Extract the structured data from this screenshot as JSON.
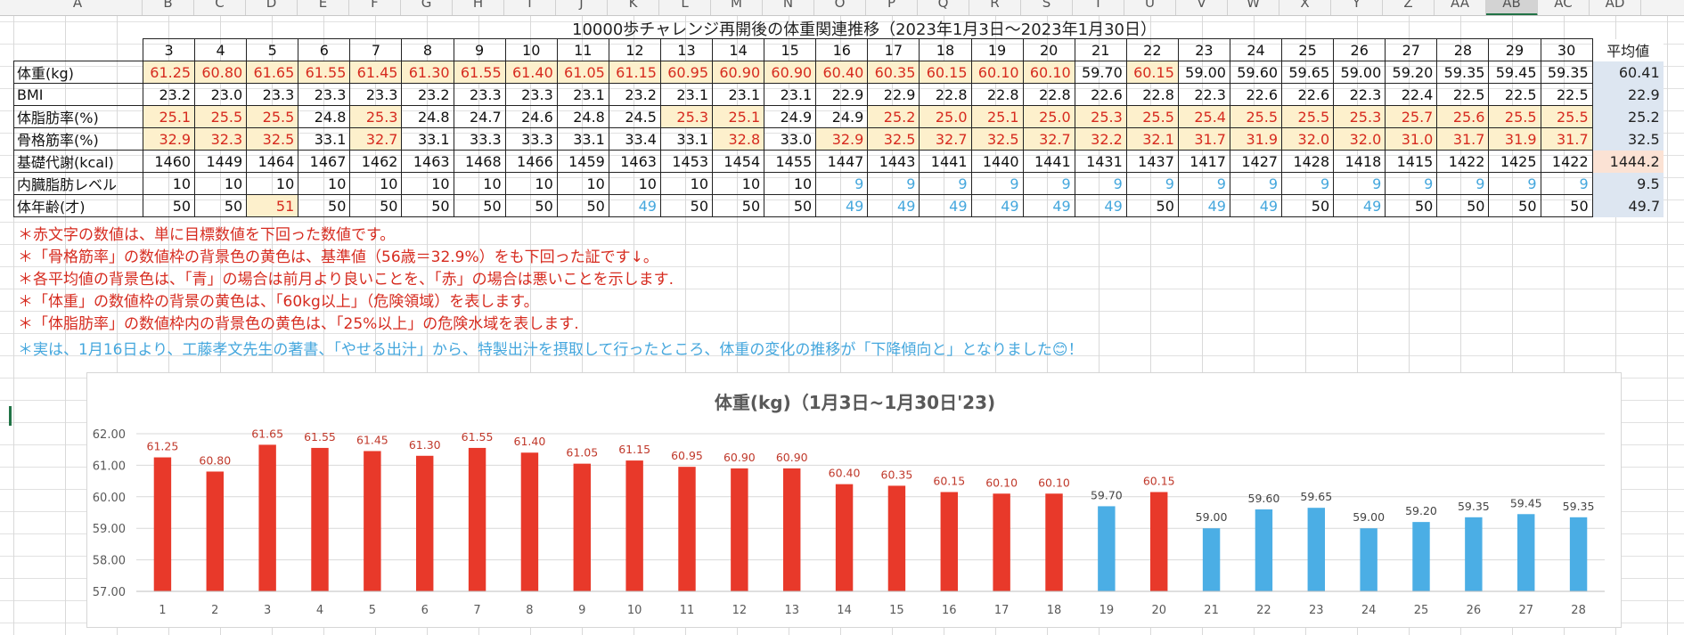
{
  "sheet": {
    "col_headers": [
      "A",
      "B",
      "C",
      "D",
      "E",
      "F",
      "G",
      "H",
      "I",
      "J",
      "K",
      "L",
      "M",
      "N",
      "O",
      "P",
      "Q",
      "R",
      "S",
      "T",
      "U",
      "V",
      "W",
      "X",
      "Y",
      "Z",
      "AA",
      "AB",
      "AC",
      "AD"
    ],
    "selected_col": "AB"
  },
  "table": {
    "title": "10000歩チャレンジ再開後の体重関連推移（2023年1月3日～2023年1月30日）",
    "days": [
      "3",
      "4",
      "5",
      "6",
      "7",
      "8",
      "9",
      "10",
      "11",
      "12",
      "13",
      "14",
      "15",
      "16",
      "17",
      "18",
      "19",
      "20",
      "21",
      "22",
      "23",
      "24",
      "25",
      "26",
      "27",
      "28",
      "29",
      "30"
    ],
    "avg_header": "平均値",
    "rows": [
      {
        "label": "体重(kg)",
        "values": [
          "61.25",
          "60.80",
          "61.65",
          "61.55",
          "61.45",
          "61.30",
          "61.55",
          "61.40",
          "61.05",
          "61.15",
          "60.95",
          "60.90",
          "60.90",
          "60.40",
          "60.35",
          "60.15",
          "60.10",
          "60.10",
          "59.70",
          "60.15",
          "59.00",
          "59.60",
          "59.65",
          "59.00",
          "59.20",
          "59.35",
          "59.45",
          "59.35"
        ],
        "text_colors": [
          "red",
          "red",
          "red",
          "red",
          "red",
          "red",
          "red",
          "red",
          "red",
          "red",
          "red",
          "red",
          "red",
          "red",
          "red",
          "red",
          "red",
          "red",
          "black",
          "red",
          "black",
          "black",
          "black",
          "black",
          "black",
          "black",
          "black",
          "black"
        ],
        "bg": [
          "y",
          "y",
          "y",
          "y",
          "y",
          "y",
          "y",
          "y",
          "y",
          "y",
          "y",
          "y",
          "y",
          "y",
          "y",
          "y",
          "y",
          "y",
          "",
          "y",
          "",
          "",
          "",
          "",
          "",
          "",
          "",
          ""
        ],
        "avg": "60.41",
        "avg_color": "red",
        "avg_bg": "blue"
      },
      {
        "label": "BMI",
        "values": [
          "23.2",
          "23.0",
          "23.3",
          "23.3",
          "23.3",
          "23.2",
          "23.3",
          "23.3",
          "23.1",
          "23.2",
          "23.1",
          "23.1",
          "23.1",
          "22.9",
          "22.9",
          "22.8",
          "22.8",
          "22.8",
          "22.6",
          "22.8",
          "22.3",
          "22.6",
          "22.6",
          "22.3",
          "22.4",
          "22.5",
          "22.5",
          "22.5"
        ],
        "text_colors": [
          "black",
          "black",
          "black",
          "black",
          "black",
          "black",
          "black",
          "black",
          "black",
          "black",
          "black",
          "black",
          "black",
          "black",
          "black",
          "black",
          "black",
          "black",
          "black",
          "black",
          "black",
          "black",
          "black",
          "black",
          "black",
          "black",
          "black",
          "black"
        ],
        "bg": [
          "",
          "",
          "",
          "",
          "",
          "",
          "",
          "",
          "",
          "",
          "",
          "",
          "",
          "",
          "",
          "",
          "",
          "",
          "",
          "",
          "",
          "",
          "",
          "",
          "",
          "",
          "",
          ""
        ],
        "avg": "22.9",
        "avg_color": "red",
        "avg_bg": "blue"
      },
      {
        "label": "体脂肪率(%)",
        "values": [
          "25.1",
          "25.5",
          "25.5",
          "24.8",
          "25.3",
          "24.8",
          "24.7",
          "24.6",
          "24.8",
          "24.5",
          "25.3",
          "25.1",
          "24.9",
          "24.9",
          "25.2",
          "25.0",
          "25.1",
          "25.0",
          "25.3",
          "25.5",
          "25.4",
          "25.5",
          "25.5",
          "25.3",
          "25.7",
          "25.6",
          "25.5",
          "25.5"
        ],
        "text_colors": [
          "red",
          "red",
          "red",
          "black",
          "red",
          "black",
          "black",
          "black",
          "black",
          "black",
          "red",
          "red",
          "black",
          "black",
          "red",
          "red",
          "red",
          "red",
          "red",
          "red",
          "red",
          "red",
          "red",
          "red",
          "red",
          "red",
          "red",
          "red"
        ],
        "bg": [
          "y",
          "y",
          "y",
          "",
          "y",
          "",
          "",
          "",
          "",
          "",
          "y",
          "y",
          "",
          "",
          "y",
          "y",
          "y",
          "y",
          "y",
          "y",
          "y",
          "y",
          "y",
          "y",
          "y",
          "y",
          "y",
          "y"
        ],
        "avg": "25.2",
        "avg_color": "red",
        "avg_bg": "blue"
      },
      {
        "label": "骨格筋率(%)",
        "values": [
          "32.9",
          "32.3",
          "32.5",
          "33.1",
          "32.7",
          "33.1",
          "33.3",
          "33.3",
          "33.1",
          "33.4",
          "33.1",
          "32.8",
          "33.0",
          "32.9",
          "32.5",
          "32.7",
          "32.5",
          "32.7",
          "32.2",
          "32.1",
          "31.7",
          "31.9",
          "32.0",
          "32.0",
          "31.0",
          "31.7",
          "31.9",
          "31.7"
        ],
        "text_colors": [
          "red",
          "red",
          "red",
          "black",
          "red",
          "black",
          "black",
          "black",
          "black",
          "black",
          "black",
          "red",
          "black",
          "red",
          "red",
          "red",
          "red",
          "red",
          "red",
          "red",
          "red",
          "red",
          "red",
          "red",
          "red",
          "red",
          "red",
          "red"
        ],
        "bg": [
          "y",
          "y",
          "y",
          "",
          "y",
          "",
          "",
          "",
          "",
          "",
          "",
          "y",
          "",
          "y",
          "y",
          "y",
          "y",
          "y",
          "y",
          "y",
          "y",
          "y",
          "y",
          "y",
          "y",
          "y",
          "y",
          "y"
        ],
        "avg": "32.5",
        "avg_color": "red",
        "avg_bg": "blue"
      },
      {
        "label": "基礎代謝(kcal)",
        "values": [
          "1460",
          "1449",
          "1464",
          "1467",
          "1462",
          "1463",
          "1468",
          "1466",
          "1459",
          "1463",
          "1453",
          "1454",
          "1455",
          "1447",
          "1443",
          "1441",
          "1440",
          "1441",
          "1431",
          "1437",
          "1417",
          "1427",
          "1428",
          "1418",
          "1415",
          "1422",
          "1425",
          "1422"
        ],
        "text_colors": [
          "black",
          "black",
          "black",
          "black",
          "black",
          "black",
          "black",
          "black",
          "black",
          "black",
          "black",
          "black",
          "black",
          "black",
          "black",
          "black",
          "black",
          "black",
          "black",
          "black",
          "black",
          "black",
          "black",
          "black",
          "black",
          "black",
          "black",
          "black"
        ],
        "bg": [
          "",
          "",
          "",
          "",
          "",
          "",
          "",
          "",
          "",
          "",
          "",
          "",
          "",
          "",
          "",
          "",
          "",
          "",
          "",
          "",
          "",
          "",
          "",
          "",
          "",
          "",
          "",
          ""
        ],
        "avg": "1444.2",
        "avg_color": "black",
        "avg_bg": "peach"
      },
      {
        "label": "内臓脂肪レベル",
        "values": [
          "10",
          "10",
          "10",
          "10",
          "10",
          "10",
          "10",
          "10",
          "10",
          "10",
          "10",
          "10",
          "10",
          "9",
          "9",
          "9",
          "9",
          "9",
          "9",
          "9",
          "9",
          "9",
          "9",
          "9",
          "9",
          "9",
          "9",
          "9"
        ],
        "text_colors": [
          "black",
          "black",
          "black",
          "black",
          "black",
          "black",
          "black",
          "black",
          "black",
          "black",
          "black",
          "black",
          "black",
          "blue",
          "blue",
          "blue",
          "blue",
          "blue",
          "blue",
          "blue",
          "blue",
          "blue",
          "blue",
          "blue",
          "blue",
          "blue",
          "blue",
          "blue"
        ],
        "bg": [
          "",
          "",
          "",
          "",
          "",
          "",
          "",
          "",
          "",
          "",
          "",
          "",
          "",
          "",
          "",
          "",
          "",
          "",
          "",
          "",
          "",
          "",
          "",
          "",
          "",
          "",
          "",
          ""
        ],
        "avg": "9.5",
        "avg_color": "black",
        "avg_bg": "blue"
      },
      {
        "label": "体年齢(才)",
        "values": [
          "50",
          "50",
          "51",
          "50",
          "50",
          "50",
          "50",
          "50",
          "50",
          "49",
          "50",
          "50",
          "50",
          "49",
          "49",
          "49",
          "49",
          "49",
          "49",
          "50",
          "49",
          "49",
          "50",
          "49",
          "50",
          "50",
          "50",
          "50"
        ],
        "text_colors": [
          "black",
          "black",
          "red",
          "black",
          "black",
          "black",
          "black",
          "black",
          "black",
          "blue",
          "black",
          "black",
          "black",
          "blue",
          "blue",
          "blue",
          "blue",
          "blue",
          "blue",
          "black",
          "blue",
          "blue",
          "black",
          "blue",
          "black",
          "black",
          "black",
          "black"
        ],
        "bg": [
          "",
          "",
          "y",
          "",
          "",
          "",
          "",
          "",
          "",
          "",
          "",
          "",
          "",
          "",
          "",
          "",
          "",
          "",
          "",
          "",
          "",
          "",
          "",
          "",
          "",
          "",
          "",
          ""
        ],
        "avg": "49.7",
        "avg_color": "black",
        "avg_bg": "blue"
      }
    ]
  },
  "notes": [
    "＊赤文字の数値は、単に目標数値を下回った数値です。",
    "＊「骨格筋率」の数値枠の背景色の黄色は、基準値（56歳＝32.9%）をも下回った証です↓。",
    "＊各平均値の背景色は、「青」の場合は前月より良いことを、「赤」の場合は悪いことを示します.",
    "＊「体重」の数値枠の背景の黄色は、「60kg以上」（危険領域）を表します。",
    "＊「体脂肪率」の数値枠内の背景色の黄色は、「25%以上」の危険水域を表します."
  ],
  "note_highlight": "＊実は、1月16日より、工藤孝文先生の著書、「やせる出汁」から、特製出汁を摂取して行ったところ、体重の変化の推移が「下降傾向と」となりました😊！",
  "colors": {
    "red": "#e8392a",
    "blue": "#4baee5",
    "red_text": "#d62b1f",
    "blue_text": "#45a7dd",
    "yellow_bg": "#fdf0cc",
    "avg_blue_bg": "#dde6f1",
    "avg_peach_bg": "#fbe2d4"
  },
  "chart_data": {
    "type": "bar",
    "title": "体重(kg)（1月3日~1月30日'23)",
    "categories": [
      "1",
      "2",
      "3",
      "4",
      "5",
      "6",
      "7",
      "8",
      "9",
      "10",
      "11",
      "12",
      "13",
      "14",
      "15",
      "16",
      "17",
      "18",
      "19",
      "20",
      "21",
      "22",
      "23",
      "24",
      "25",
      "26",
      "27",
      "28"
    ],
    "values": [
      61.25,
      60.8,
      61.65,
      61.55,
      61.45,
      61.3,
      61.55,
      61.4,
      61.05,
      61.15,
      60.95,
      60.9,
      60.9,
      60.4,
      60.35,
      60.15,
      60.1,
      60.1,
      59.7,
      60.15,
      59.0,
      59.6,
      59.65,
      59.0,
      59.2,
      59.35,
      59.45,
      59.35
    ],
    "value_labels": [
      "61.25",
      "60.80",
      "61.65",
      "61.55",
      "61.45",
      "61.30",
      "61.55",
      "61.40",
      "61.05",
      "61.15",
      "60.95",
      "60.90",
      "60.90",
      "60.40",
      "60.35",
      "60.15",
      "60.10",
      "60.10",
      "59.70",
      "60.15",
      "59.00",
      "59.60",
      "59.65",
      "59.00",
      "59.20",
      "59.35",
      "59.45",
      "59.35"
    ],
    "bar_colors": [
      "red",
      "red",
      "red",
      "red",
      "red",
      "red",
      "red",
      "red",
      "red",
      "red",
      "red",
      "red",
      "red",
      "red",
      "red",
      "red",
      "red",
      "red",
      "blue",
      "red",
      "blue",
      "blue",
      "blue",
      "blue",
      "blue",
      "blue",
      "blue",
      "blue"
    ],
    "ylim": [
      57,
      62
    ],
    "y_ticks": [
      "57.00",
      "58.00",
      "59.00",
      "60.00",
      "61.00",
      "62.00"
    ],
    "grid": true,
    "legend": "none",
    "xlabel": "",
    "ylabel": ""
  }
}
